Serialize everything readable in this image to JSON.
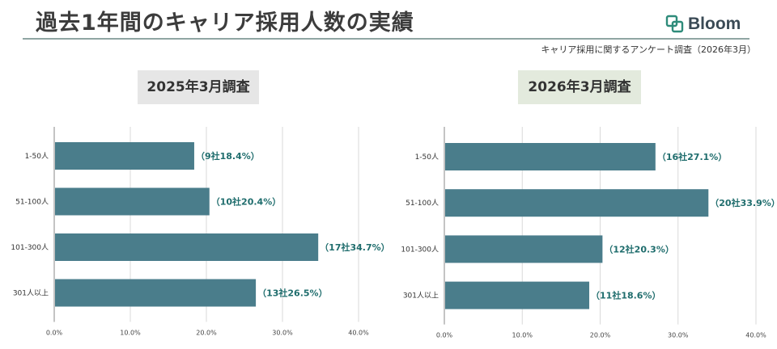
{
  "header": {
    "title": "過去1年間のキャリア採用人数の実績",
    "subtitle": "キャリア採用に関するアンケート調査（2026年3月）",
    "logo_text": "Bloom"
  },
  "colors": {
    "bar": "#4a7d8b",
    "data_label": "#1f6d6d",
    "grid": "#d9d9d9",
    "axis": "#888888"
  },
  "chart_data": [
    {
      "type": "bar",
      "orientation": "horizontal",
      "title": "2025年3月調査",
      "categories": [
        "1-50人",
        "51-100人",
        "101-300人",
        "301人以上"
      ],
      "values": [
        18.4,
        20.4,
        34.7,
        26.5
      ],
      "data_labels": [
        "（9社18.4%）",
        "（10社20.4%）",
        "（17社34.7%）",
        "（13社26.5%）"
      ],
      "xlim": [
        0,
        40
      ],
      "xticks": [
        "0.0%",
        "10.0%",
        "20.0%",
        "30.0%",
        "40.0%"
      ],
      "grid": true
    },
    {
      "type": "bar",
      "orientation": "horizontal",
      "title": "2026年3月調査",
      "categories": [
        "1-50人",
        "51-100人",
        "101-300人",
        "301人以上"
      ],
      "values": [
        27.1,
        33.9,
        20.3,
        18.6
      ],
      "data_labels": [
        "（16社27.1%）",
        "（20社33.9%）",
        "（12社20.3%）",
        "（11社18.6%）"
      ],
      "xlim": [
        0,
        40
      ],
      "xticks": [
        "0.0%",
        "10.0%",
        "20.0%",
        "30.0%",
        "40.0%"
      ],
      "grid": true
    }
  ]
}
